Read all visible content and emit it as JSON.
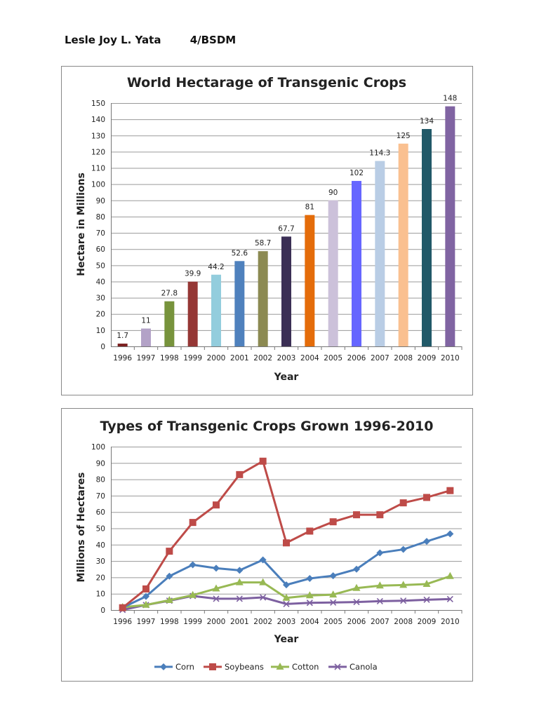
{
  "header": {
    "name": "Lesle Joy L. Yata",
    "section": "4/BSDM"
  },
  "chart_data": [
    {
      "type": "bar",
      "title": "World Hectarage of Transgenic Crops",
      "xlabel": "Year",
      "ylabel": "Hectare in Millions",
      "categories": [
        "1996",
        "1997",
        "1998",
        "1999",
        "2000",
        "2001",
        "2002",
        "2003",
        "2004",
        "2005",
        "2006",
        "2007",
        "2008",
        "2009",
        "2010"
      ],
      "values": [
        1.7,
        11,
        27.8,
        39.9,
        44.2,
        52.6,
        58.7,
        67.7,
        81,
        90,
        102,
        114.3,
        125,
        134,
        148
      ],
      "data_labels": [
        "1.7",
        "11",
        "27.8",
        "39.9",
        "44.2",
        "52.6",
        "58.7",
        "67.7",
        "81",
        "90",
        "102",
        "114.3",
        "125",
        "134",
        "148"
      ],
      "colors": [
        "#7b1f1f",
        "#b3a2c7",
        "#77933c",
        "#953735",
        "#93cddd",
        "#4f81bd",
        "#8c8a52",
        "#3b2f55",
        "#e46c0a",
        "#ccc1da",
        "#6666ff",
        "#b9cde5",
        "#fac090",
        "#215968",
        "#8064a2"
      ],
      "ylim": [
        0,
        150
      ],
      "yticks": [
        0,
        10,
        20,
        30,
        40,
        50,
        60,
        70,
        80,
        90,
        100,
        110,
        120,
        130,
        140,
        150
      ],
      "grid": true
    },
    {
      "type": "line",
      "title": "Types of Transgenic Crops Grown 1996-2010",
      "xlabel": "Year",
      "ylabel": "Millions of Hectares",
      "x": [
        "1996",
        "1997",
        "1998",
        "1999",
        "2000",
        "2001",
        "2002",
        "2003",
        "2004",
        "2005",
        "2006",
        "2007",
        "2008",
        "2009",
        "2010"
      ],
      "ylim": [
        0,
        100
      ],
      "yticks": [
        0,
        10,
        20,
        30,
        40,
        50,
        60,
        70,
        80,
        90,
        100
      ],
      "grid": true,
      "legend": "bottom",
      "series": [
        {
          "name": "Corn",
          "color": "#4a7ebb",
          "marker": "diamond",
          "values": [
            1.5,
            8.3,
            20.7,
            27.7,
            25.6,
            24.3,
            30.7,
            15.4,
            19.3,
            21,
            25,
            35,
            37.1,
            42,
            46.6
          ]
        },
        {
          "name": "Soybeans",
          "color": "#be4b48",
          "marker": "square",
          "values": [
            1.4,
            12.9,
            36,
            53.6,
            64.3,
            82.9,
            91.1,
            41.1,
            48.3,
            54,
            58.3,
            58.3,
            65.6,
            68.9,
            73.1
          ]
        },
        {
          "name": "Cotton",
          "color": "#98b954",
          "marker": "triangle",
          "values": [
            1.7,
            3.1,
            6,
            9.1,
            13.1,
            16.9,
            16.9,
            7.4,
            8.9,
            9.4,
            13.4,
            14.9,
            15.3,
            15.9,
            20.7
          ]
        },
        {
          "name": "Canola",
          "color": "#7d60a0",
          "marker": "x",
          "values": [
            0.1,
            3.1,
            5.7,
            8.6,
            6.9,
            6.9,
            7.7,
            3.7,
            4.4,
            4.6,
            4.9,
            5.4,
            5.7,
            6.3,
            6.7
          ]
        }
      ]
    }
  ]
}
